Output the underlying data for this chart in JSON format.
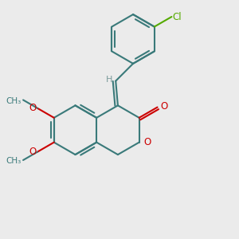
{
  "bg_color": "#ebebeb",
  "bond_color": "#3a7a7a",
  "oxygen_color": "#cc0000",
  "chlorine_color": "#55aa00",
  "bond_width": 1.5,
  "figsize": [
    3.0,
    3.0
  ],
  "dpi": 100,
  "xlim": [
    0,
    10
  ],
  "ylim": [
    0,
    10
  ]
}
